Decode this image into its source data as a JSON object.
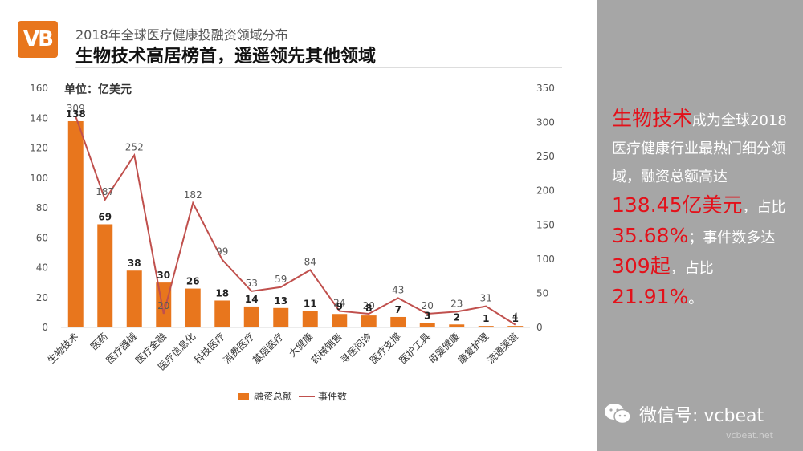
{
  "header": {
    "logo_text": "VB",
    "subtitle": "2018年全球医疗健康投融资领域分布",
    "title": "生物技术高居榜首，遥遥领先其他领域"
  },
  "chart_data": {
    "type": "bar",
    "unit_label": "单位：亿美元",
    "categories": [
      "生物技术",
      "医药",
      "医疗器械",
      "医疗金融",
      "医疗信息化",
      "科技医疗",
      "消费医疗",
      "基层医疗",
      "大健康",
      "药械销售",
      "寻医问诊",
      "医疗支撑",
      "医护工具",
      "母婴健康",
      "康复护理",
      "流通渠道"
    ],
    "series": [
      {
        "name": "融资总额",
        "kind": "bar",
        "axis": "left",
        "color": "#e8761d",
        "values": [
          138,
          69,
          38,
          30,
          26,
          18,
          14,
          13,
          11,
          9,
          8,
          7,
          3,
          2,
          1,
          1
        ]
      },
      {
        "name": "事件数",
        "kind": "line",
        "axis": "right",
        "color": "#c0504d",
        "values": [
          309,
          187,
          252,
          20,
          182,
          99,
          53,
          59,
          84,
          24,
          20,
          43,
          20,
          23,
          31,
          4
        ]
      }
    ],
    "y_left": {
      "min": 0,
      "max": 160,
      "ticks": [
        0,
        20,
        40,
        60,
        80,
        100,
        120,
        140,
        160
      ]
    },
    "y_right": {
      "min": 0,
      "max": 350,
      "ticks": [
        0,
        50,
        100,
        150,
        200,
        250,
        300,
        350
      ]
    },
    "legend_position": "bottom",
    "grid": false
  },
  "sidebar": {
    "line1_highlight": "生物技术",
    "line1_rest": "成为全球2018医疗健康行业最热门细分领域，融资总额高达",
    "amount": "138.45亿美元",
    "mid1": "，占比",
    "share_pct": "35.68%",
    "mid2": "；事件数多达",
    "events": "309起",
    "mid3": "，占比",
    "events_pct": "21.91%",
    "end": "。"
  },
  "footer": {
    "wechat_label": "微信号: vcbeat",
    "watermark": "vcbeat.net"
  },
  "colors": {
    "bar": "#e8761d",
    "line": "#c0504d",
    "sidebar_bg": "#a6a6a6",
    "highlight": "#e3111a"
  }
}
